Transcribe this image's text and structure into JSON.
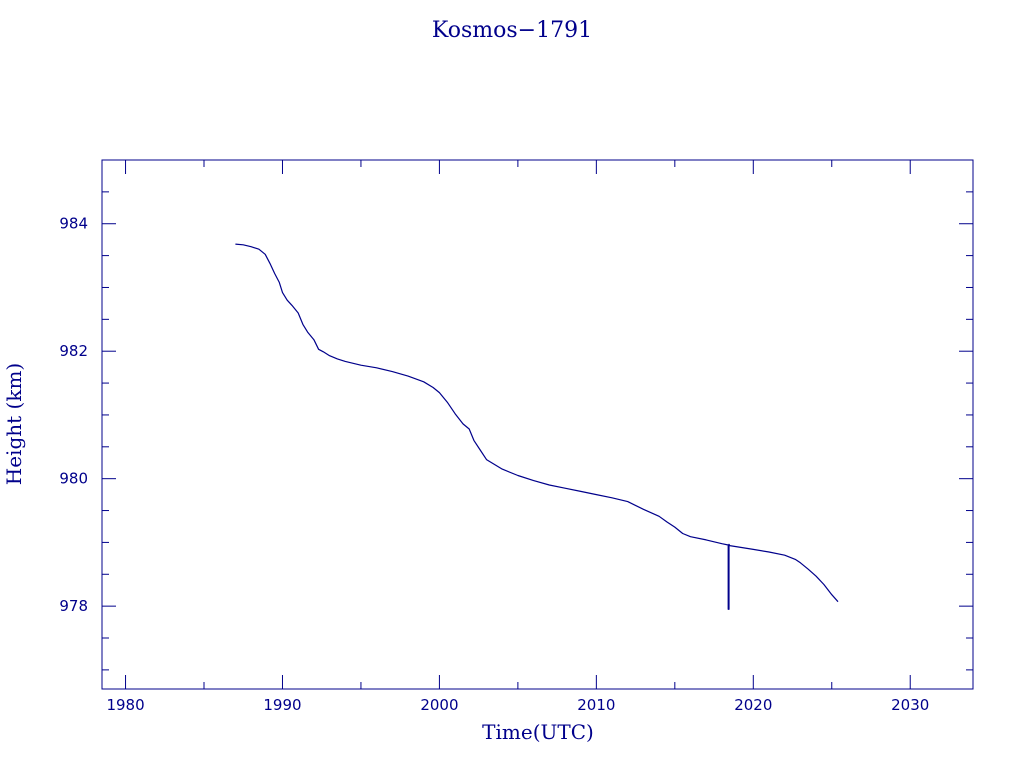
{
  "chart_data": {
    "type": "line",
    "title": "Kosmos−1791",
    "xlabel": "Time(UTC)",
    "ylabel": "Height (km)",
    "xlim": [
      1978.5,
      2034
    ],
    "ylim": [
      976.7,
      985
    ],
    "xticks": [
      1980,
      1990,
      2000,
      2010,
      2020,
      2030
    ],
    "yticks": [
      978,
      980,
      982,
      984
    ],
    "grid": false,
    "color": "#00008b",
    "series": [
      {
        "x": [
          1987.0,
          1987.5,
          1988.0,
          1988.5,
          1988.9,
          1989.2,
          1989.5,
          1989.8,
          1990.0,
          1990.3,
          1990.6,
          1991.0,
          1991.3,
          1991.6,
          1992.0,
          1992.3,
          1992.6,
          1993.0,
          1993.5,
          1994.0,
          1995.0,
          1996.0,
          1997.0,
          1998.0,
          1999.0,
          1999.6,
          2000.0,
          2000.5,
          2001.0,
          2001.5,
          2001.9,
          2002.2,
          2002.6,
          2003.0,
          2004.0,
          2005.0,
          2006.0,
          2007.0,
          2008.0,
          2009.0,
          2010.0,
          2011.0,
          2012.0,
          2013.0,
          2014.0,
          2014.5,
          2015.0,
          2015.5,
          2016.0,
          2017.0,
          2018.0,
          2018.4,
          2018.4,
          2018.45,
          2018.45,
          2018.5,
          2019.0,
          2020.0,
          2021.0,
          2022.0,
          2022.7,
          2023.0,
          2023.5,
          2024.0,
          2024.5,
          2025.0,
          2025.4
        ],
        "y": [
          983.68,
          983.67,
          983.64,
          983.6,
          983.52,
          983.38,
          983.22,
          983.08,
          982.92,
          982.8,
          982.72,
          982.6,
          982.42,
          982.3,
          982.18,
          982.03,
          981.99,
          981.93,
          981.88,
          981.84,
          981.78,
          981.74,
          981.68,
          981.61,
          981.52,
          981.43,
          981.35,
          981.2,
          981.02,
          980.86,
          980.78,
          980.6,
          980.45,
          980.3,
          980.15,
          980.05,
          979.97,
          979.9,
          979.85,
          979.8,
          979.75,
          979.7,
          979.64,
          979.52,
          979.41,
          979.32,
          979.24,
          979.14,
          979.09,
          979.04,
          978.98,
          978.96,
          977.95,
          977.95,
          978.97,
          978.95,
          978.93,
          978.89,
          978.85,
          978.8,
          978.73,
          978.68,
          978.58,
          978.47,
          978.34,
          978.18,
          978.07
        ]
      }
    ]
  }
}
